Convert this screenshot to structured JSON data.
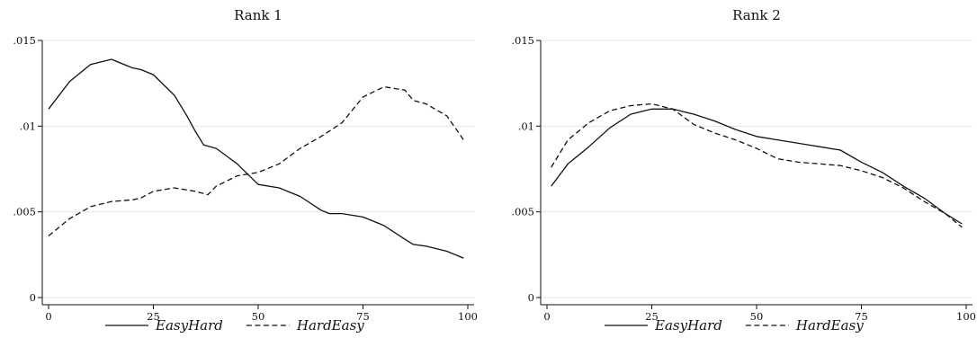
{
  "chart_data": [
    {
      "type": "line",
      "title": "Rank 1",
      "xlabel": "",
      "ylabel": "",
      "xlim": [
        0,
        100
      ],
      "ylim": [
        0,
        0.015
      ],
      "grid": true,
      "legend": "bottom",
      "xticks": [
        0,
        25,
        50,
        75,
        100
      ],
      "xtick_labels": [
        "0",
        "25",
        "50",
        "75",
        "100"
      ],
      "yticks": [
        0,
        0.005,
        0.01,
        0.015
      ],
      "ytick_labels": [
        "0",
        ".005",
        ".01",
        ".015"
      ],
      "series": [
        {
          "name": "EasyHard",
          "style": "solid",
          "x": [
            0,
            5,
            10,
            15,
            20,
            22,
            25,
            30,
            33,
            35,
            37,
            40,
            45,
            50,
            55,
            60,
            65,
            67,
            70,
            75,
            80,
            85,
            87,
            90,
            95,
            99
          ],
          "y": [
            0.011,
            0.0126,
            0.0136,
            0.0139,
            0.0134,
            0.0133,
            0.013,
            0.0118,
            0.0106,
            0.0097,
            0.0089,
            0.0087,
            0.0078,
            0.0066,
            0.0064,
            0.0059,
            0.0051,
            0.0049,
            0.0049,
            0.0047,
            0.0042,
            0.0034,
            0.0031,
            0.003,
            0.0027,
            0.0023
          ]
        },
        {
          "name": "HardEasy",
          "style": "dashed",
          "x": [
            0,
            5,
            10,
            15,
            20,
            22,
            25,
            30,
            35,
            38,
            40,
            45,
            50,
            55,
            60,
            65,
            70,
            75,
            80,
            85,
            87,
            90,
            95,
            99
          ],
          "y": [
            0.0036,
            0.0046,
            0.0053,
            0.0056,
            0.0057,
            0.0058,
            0.0062,
            0.0064,
            0.0062,
            0.006,
            0.0065,
            0.0071,
            0.0073,
            0.0078,
            0.0087,
            0.0094,
            0.0102,
            0.0117,
            0.0123,
            0.0121,
            0.0115,
            0.0113,
            0.0106,
            0.0092
          ]
        }
      ]
    },
    {
      "type": "line",
      "title": "Rank 2",
      "xlabel": "",
      "ylabel": "",
      "xlim": [
        0,
        100
      ],
      "ylim": [
        0,
        0.015
      ],
      "grid": true,
      "legend": "bottom",
      "xticks": [
        0,
        25,
        50,
        75,
        100
      ],
      "xtick_labels": [
        "0",
        "25",
        "50",
        "75",
        "100"
      ],
      "yticks": [
        0,
        0.005,
        0.01,
        0.015
      ],
      "ytick_labels": [
        "0",
        ".005",
        ".01",
        ".015"
      ],
      "series": [
        {
          "name": "EasyHard",
          "style": "solid",
          "x": [
            1,
            5,
            10,
            15,
            20,
            25,
            30,
            35,
            40,
            45,
            50,
            55,
            60,
            65,
            70,
            75,
            80,
            85,
            90,
            95,
            99
          ],
          "y": [
            0.0065,
            0.0078,
            0.0088,
            0.0099,
            0.0107,
            0.011,
            0.011,
            0.0107,
            0.0103,
            0.0098,
            0.0094,
            0.0092,
            0.009,
            0.0088,
            0.0086,
            0.0079,
            0.0073,
            0.0065,
            0.0058,
            0.0049,
            0.0043
          ]
        },
        {
          "name": "HardEasy",
          "style": "dashed",
          "x": [
            1,
            5,
            10,
            15,
            20,
            25,
            30,
            35,
            40,
            45,
            50,
            55,
            60,
            65,
            70,
            75,
            80,
            85,
            90,
            95,
            99
          ],
          "y": [
            0.0076,
            0.0092,
            0.0102,
            0.0109,
            0.0112,
            0.0113,
            0.011,
            0.0101,
            0.0096,
            0.0092,
            0.0087,
            0.0081,
            0.0079,
            0.0078,
            0.0077,
            0.0074,
            0.007,
            0.0064,
            0.0056,
            0.0049,
            0.0041
          ]
        }
      ]
    }
  ]
}
